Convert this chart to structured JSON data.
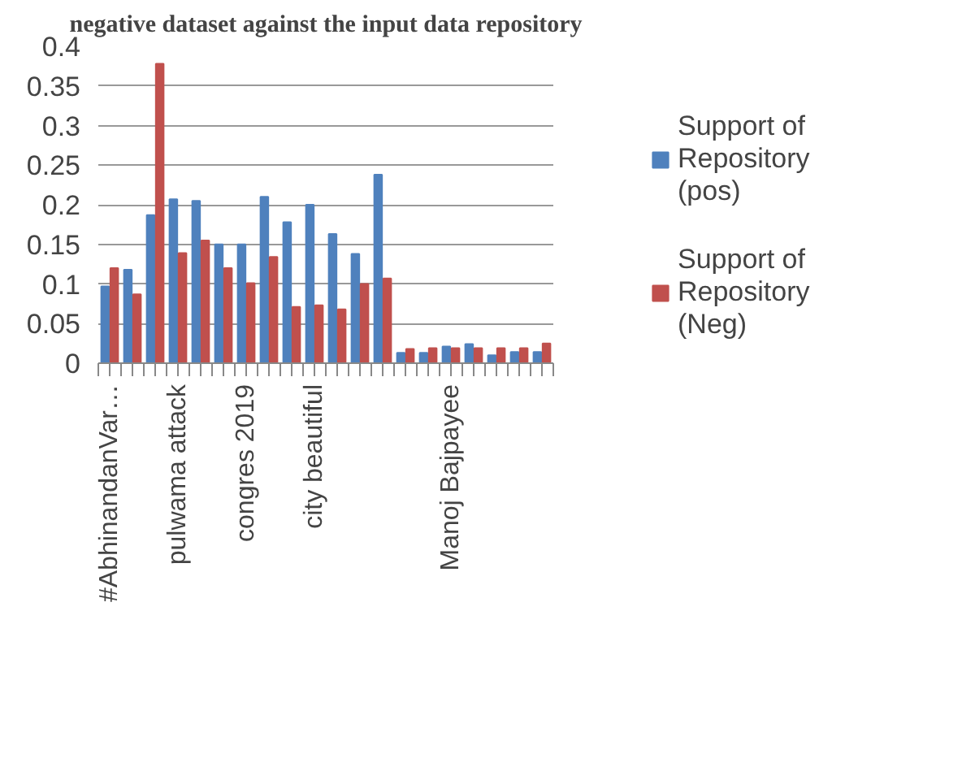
{
  "chart_data": {
    "type": "bar",
    "title": "negative dataset against the input data repository",
    "categories": [
      "#AbhinandanVar…",
      null,
      null,
      "pulwama attack",
      null,
      null,
      "congres 2019",
      null,
      null,
      "city beautiful",
      null,
      null,
      null,
      null,
      null,
      "Manoj Bajpayee",
      null,
      null,
      null,
      null
    ],
    "series": [
      {
        "name": "Support of Repository (pos)",
        "color": "#4f81bd",
        "values": [
          0.097,
          0.118,
          0.187,
          0.207,
          0.205,
          0.15,
          0.15,
          0.21,
          0.178,
          0.2,
          0.163,
          0.138,
          0.238,
          0.013,
          0.013,
          0.021,
          0.024,
          0.01,
          0.014,
          0.014
        ]
      },
      {
        "name": "Support of Repository (Neg)",
        "color": "#c0504d",
        "values": [
          0.12,
          0.087,
          0.378,
          0.139,
          0.155,
          0.12,
          0.101,
          0.134,
          0.071,
          0.073,
          0.068,
          0.1,
          0.107,
          0.018,
          0.019,
          0.019,
          0.019,
          0.019,
          0.019,
          0.025
        ]
      }
    ],
    "ylim": [
      0,
      0.4
    ],
    "yticks": [
      0,
      0.05,
      0.1,
      0.15,
      0.2,
      0.25,
      0.3,
      0.35,
      0.4
    ],
    "grid": "y",
    "legend": "right"
  }
}
